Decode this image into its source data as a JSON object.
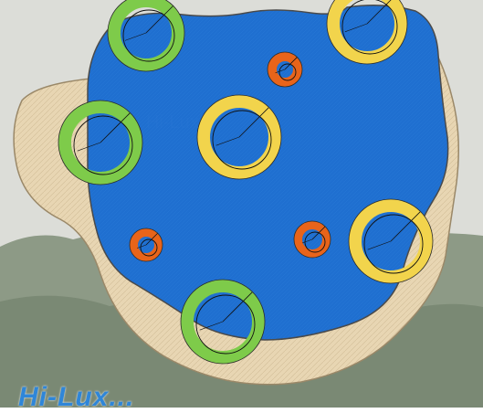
{
  "colors": {
    "sky": "#d9dad6",
    "hills": "#8d9a86",
    "hills_dark": "#6f7d6a",
    "deck": "#e8d6b3",
    "deck_line": "#cdb892",
    "pool": "#1f6fd0",
    "pool_edge": "#0f4fa8",
    "ring_green": "#7ecb4a",
    "ring_yellow": "#f2d44c",
    "ring_orange": "#e8641a",
    "label_color": "#2f86d8"
  },
  "pool": {
    "deck_name": "deck-surround",
    "water_name": "pool-water"
  },
  "floats": [
    {
      "name": "green-ring-top",
      "color": "ring_green"
    },
    {
      "name": "yellow-ring-top-right",
      "color": "ring_yellow"
    },
    {
      "name": "orange-ring-small-top",
      "color": "ring_orange"
    },
    {
      "name": "green-ring-left",
      "color": "ring_green"
    },
    {
      "name": "yellow-ring-center",
      "color": "ring_yellow"
    },
    {
      "name": "orange-ring-left",
      "color": "ring_orange"
    },
    {
      "name": "orange-ring-right",
      "color": "ring_orange"
    },
    {
      "name": "yellow-ring-right",
      "color": "ring_yellow"
    },
    {
      "name": "green-ring-bottom",
      "color": "ring_green"
    }
  ],
  "logo": {
    "text": "Hi-Lux..."
  }
}
